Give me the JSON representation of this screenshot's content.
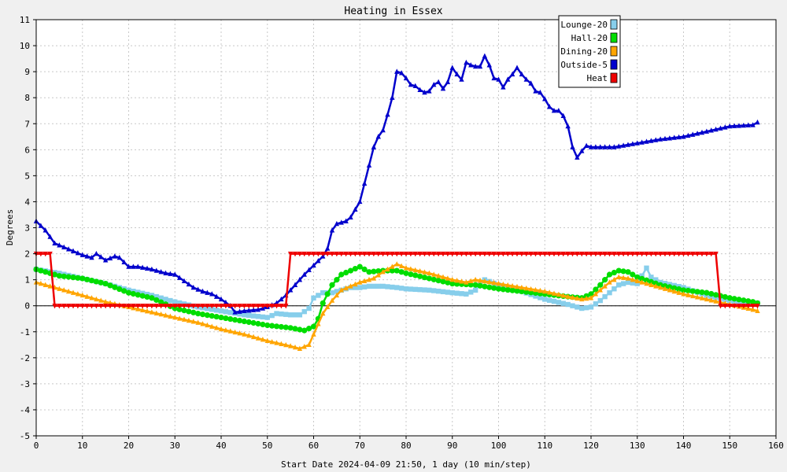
{
  "chart_data": {
    "type": "line",
    "title": "Heating in Essex",
    "ylabel": "Degrees",
    "xlabel": "Start Date 2024-04-09 21:50, 1 day (10 min/step)",
    "xlim": [
      0,
      160
    ],
    "ylim": [
      -5,
      11
    ],
    "xticks": [
      0,
      10,
      20,
      30,
      40,
      50,
      60,
      70,
      80,
      90,
      100,
      110,
      120,
      130,
      140,
      150,
      160
    ],
    "yticks": [
      -5,
      -4,
      -3,
      -2,
      -1,
      0,
      1,
      2,
      3,
      4,
      5,
      6,
      7,
      8,
      9,
      10,
      11
    ],
    "grid": true,
    "legend_position": "top-right",
    "series": [
      {
        "name": "Lounge-20",
        "color": "#87CEEB",
        "marker": "square",
        "points": [
          [
            0,
            1.4
          ],
          [
            5,
            1.25
          ],
          [
            10,
            1.05
          ],
          [
            15,
            0.85
          ],
          [
            20,
            0.6
          ],
          [
            25,
            0.4
          ],
          [
            30,
            0.15
          ],
          [
            35,
            -0.05
          ],
          [
            40,
            -0.2
          ],
          [
            45,
            -0.35
          ],
          [
            50,
            -0.45
          ],
          [
            52,
            -0.3
          ],
          [
            55,
            -0.35
          ],
          [
            57,
            -0.35
          ],
          [
            59,
            -0.1
          ],
          [
            60,
            0.3
          ],
          [
            62,
            0.5
          ],
          [
            64,
            0.5
          ],
          [
            66,
            0.6
          ],
          [
            68,
            0.7
          ],
          [
            70,
            0.7
          ],
          [
            72,
            0.75
          ],
          [
            75,
            0.75
          ],
          [
            78,
            0.7
          ],
          [
            80,
            0.65
          ],
          [
            85,
            0.6
          ],
          [
            90,
            0.5
          ],
          [
            93,
            0.45
          ],
          [
            95,
            0.6
          ],
          [
            97,
            1.0
          ],
          [
            100,
            0.8
          ],
          [
            105,
            0.55
          ],
          [
            110,
            0.25
          ],
          [
            115,
            0.05
          ],
          [
            118,
            -0.1
          ],
          [
            120,
            -0.05
          ],
          [
            122,
            0.2
          ],
          [
            124,
            0.5
          ],
          [
            126,
            0.8
          ],
          [
            128,
            0.9
          ],
          [
            130,
            0.85
          ],
          [
            132,
            1.45
          ],
          [
            133,
            1.1
          ],
          [
            135,
            0.9
          ],
          [
            140,
            0.7
          ],
          [
            145,
            0.4
          ],
          [
            150,
            0.2
          ],
          [
            155,
            0.1
          ],
          [
            156,
            0.1
          ]
        ]
      },
      {
        "name": "Hall-20",
        "color": "#00DD00",
        "marker": "circle",
        "points": [
          [
            0,
            1.4
          ],
          [
            5,
            1.15
          ],
          [
            10,
            1.05
          ],
          [
            15,
            0.85
          ],
          [
            20,
            0.5
          ],
          [
            25,
            0.3
          ],
          [
            30,
            -0.1
          ],
          [
            35,
            -0.3
          ],
          [
            40,
            -0.45
          ],
          [
            45,
            -0.6
          ],
          [
            50,
            -0.75
          ],
          [
            55,
            -0.85
          ],
          [
            58,
            -0.95
          ],
          [
            60,
            -0.8
          ],
          [
            61,
            -0.5
          ],
          [
            62,
            0.1
          ],
          [
            64,
            0.8
          ],
          [
            66,
            1.2
          ],
          [
            68,
            1.35
          ],
          [
            70,
            1.5
          ],
          [
            72,
            1.3
          ],
          [
            75,
            1.35
          ],
          [
            78,
            1.35
          ],
          [
            80,
            1.25
          ],
          [
            85,
            1.05
          ],
          [
            90,
            0.85
          ],
          [
            95,
            0.8
          ],
          [
            100,
            0.65
          ],
          [
            105,
            0.55
          ],
          [
            110,
            0.45
          ],
          [
            115,
            0.35
          ],
          [
            118,
            0.3
          ],
          [
            120,
            0.45
          ],
          [
            122,
            0.8
          ],
          [
            124,
            1.2
          ],
          [
            126,
            1.35
          ],
          [
            128,
            1.3
          ],
          [
            130,
            1.1
          ],
          [
            135,
            0.8
          ],
          [
            140,
            0.6
          ],
          [
            145,
            0.5
          ],
          [
            150,
            0.3
          ],
          [
            155,
            0.15
          ],
          [
            156,
            0.1
          ]
        ]
      },
      {
        "name": "Dining-20",
        "color": "#FFA500",
        "marker": "triangle",
        "points": [
          [
            0,
            0.9
          ],
          [
            5,
            0.65
          ],
          [
            10,
            0.4
          ],
          [
            15,
            0.15
          ],
          [
            20,
            -0.05
          ],
          [
            25,
            -0.25
          ],
          [
            30,
            -0.45
          ],
          [
            35,
            -0.65
          ],
          [
            40,
            -0.9
          ],
          [
            45,
            -1.1
          ],
          [
            50,
            -1.35
          ],
          [
            55,
            -1.55
          ],
          [
            57,
            -1.65
          ],
          [
            59,
            -1.5
          ],
          [
            60,
            -1.1
          ],
          [
            61,
            -0.7
          ],
          [
            62,
            -0.3
          ],
          [
            64,
            0.2
          ],
          [
            66,
            0.6
          ],
          [
            70,
            0.9
          ],
          [
            73,
            1.05
          ],
          [
            75,
            1.3
          ],
          [
            78,
            1.6
          ],
          [
            80,
            1.45
          ],
          [
            85,
            1.25
          ],
          [
            90,
            1.0
          ],
          [
            93,
            0.9
          ],
          [
            95,
            1.0
          ],
          [
            100,
            0.85
          ],
          [
            105,
            0.7
          ],
          [
            110,
            0.55
          ],
          [
            115,
            0.35
          ],
          [
            118,
            0.25
          ],
          [
            120,
            0.3
          ],
          [
            122,
            0.6
          ],
          [
            124,
            0.9
          ],
          [
            126,
            1.1
          ],
          [
            128,
            1.05
          ],
          [
            130,
            0.95
          ],
          [
            135,
            0.7
          ],
          [
            140,
            0.45
          ],
          [
            145,
            0.25
          ],
          [
            150,
            0.05
          ],
          [
            155,
            -0.15
          ],
          [
            156,
            -0.2
          ]
        ]
      },
      {
        "name": "Outside-5",
        "color": "#0000CC",
        "marker": "triangle",
        "points": [
          [
            0,
            3.25
          ],
          [
            2,
            2.9
          ],
          [
            4,
            2.4
          ],
          [
            6,
            2.25
          ],
          [
            8,
            2.1
          ],
          [
            10,
            1.95
          ],
          [
            12,
            1.85
          ],
          [
            13,
            2.0
          ],
          [
            15,
            1.75
          ],
          [
            17,
            1.9
          ],
          [
            18,
            1.85
          ],
          [
            20,
            1.5
          ],
          [
            22,
            1.5
          ],
          [
            25,
            1.4
          ],
          [
            28,
            1.25
          ],
          [
            30,
            1.2
          ],
          [
            32,
            0.95
          ],
          [
            34,
            0.7
          ],
          [
            36,
            0.55
          ],
          [
            38,
            0.45
          ],
          [
            40,
            0.25
          ],
          [
            42,
            0.0
          ],
          [
            43,
            -0.25
          ],
          [
            45,
            -0.2
          ],
          [
            48,
            -0.15
          ],
          [
            50,
            -0.05
          ],
          [
            52,
            0.1
          ],
          [
            54,
            0.4
          ],
          [
            56,
            0.8
          ],
          [
            58,
            1.2
          ],
          [
            60,
            1.55
          ],
          [
            62,
            1.9
          ],
          [
            63,
            2.2
          ],
          [
            64,
            2.9
          ],
          [
            65,
            3.15
          ],
          [
            67,
            3.25
          ],
          [
            68,
            3.4
          ],
          [
            70,
            4.0
          ],
          [
            71,
            4.7
          ],
          [
            72,
            5.4
          ],
          [
            73,
            6.1
          ],
          [
            74,
            6.5
          ],
          [
            75,
            6.75
          ],
          [
            76,
            7.35
          ],
          [
            77,
            8.0
          ],
          [
            78,
            9.0
          ],
          [
            79,
            8.95
          ],
          [
            80,
            8.75
          ],
          [
            81,
            8.5
          ],
          [
            82,
            8.45
          ],
          [
            83,
            8.3
          ],
          [
            84,
            8.2
          ],
          [
            85,
            8.25
          ],
          [
            86,
            8.5
          ],
          [
            87,
            8.6
          ],
          [
            88,
            8.35
          ],
          [
            89,
            8.6
          ],
          [
            90,
            9.15
          ],
          [
            91,
            8.9
          ],
          [
            92,
            8.7
          ],
          [
            93,
            9.35
          ],
          [
            94,
            9.25
          ],
          [
            95,
            9.2
          ],
          [
            96,
            9.2
          ],
          [
            97,
            9.6
          ],
          [
            98,
            9.25
          ],
          [
            99,
            8.75
          ],
          [
            100,
            8.7
          ],
          [
            101,
            8.4
          ],
          [
            102,
            8.7
          ],
          [
            103,
            8.9
          ],
          [
            104,
            9.15
          ],
          [
            105,
            8.9
          ],
          [
            106,
            8.7
          ],
          [
            107,
            8.55
          ],
          [
            108,
            8.25
          ],
          [
            109,
            8.2
          ],
          [
            110,
            7.95
          ],
          [
            111,
            7.65
          ],
          [
            112,
            7.5
          ],
          [
            113,
            7.5
          ],
          [
            114,
            7.3
          ],
          [
            115,
            6.9
          ],
          [
            116,
            6.1
          ],
          [
            117,
            5.7
          ],
          [
            118,
            5.95
          ],
          [
            119,
            6.15
          ],
          [
            120,
            6.1
          ],
          [
            125,
            6.1
          ],
          [
            130,
            6.25
          ],
          [
            135,
            6.4
          ],
          [
            140,
            6.5
          ],
          [
            145,
            6.7
          ],
          [
            150,
            6.9
          ],
          [
            155,
            6.95
          ],
          [
            156,
            7.05
          ]
        ]
      },
      {
        "name": "Heat",
        "color": "#EE0000",
        "marker": "triangle-down",
        "points": [
          [
            0,
            2
          ],
          [
            3,
            2
          ],
          [
            4,
            0
          ],
          [
            54,
            0
          ],
          [
            55,
            2
          ],
          [
            147,
            2
          ],
          [
            148,
            0
          ],
          [
            156,
            0
          ]
        ]
      }
    ]
  }
}
